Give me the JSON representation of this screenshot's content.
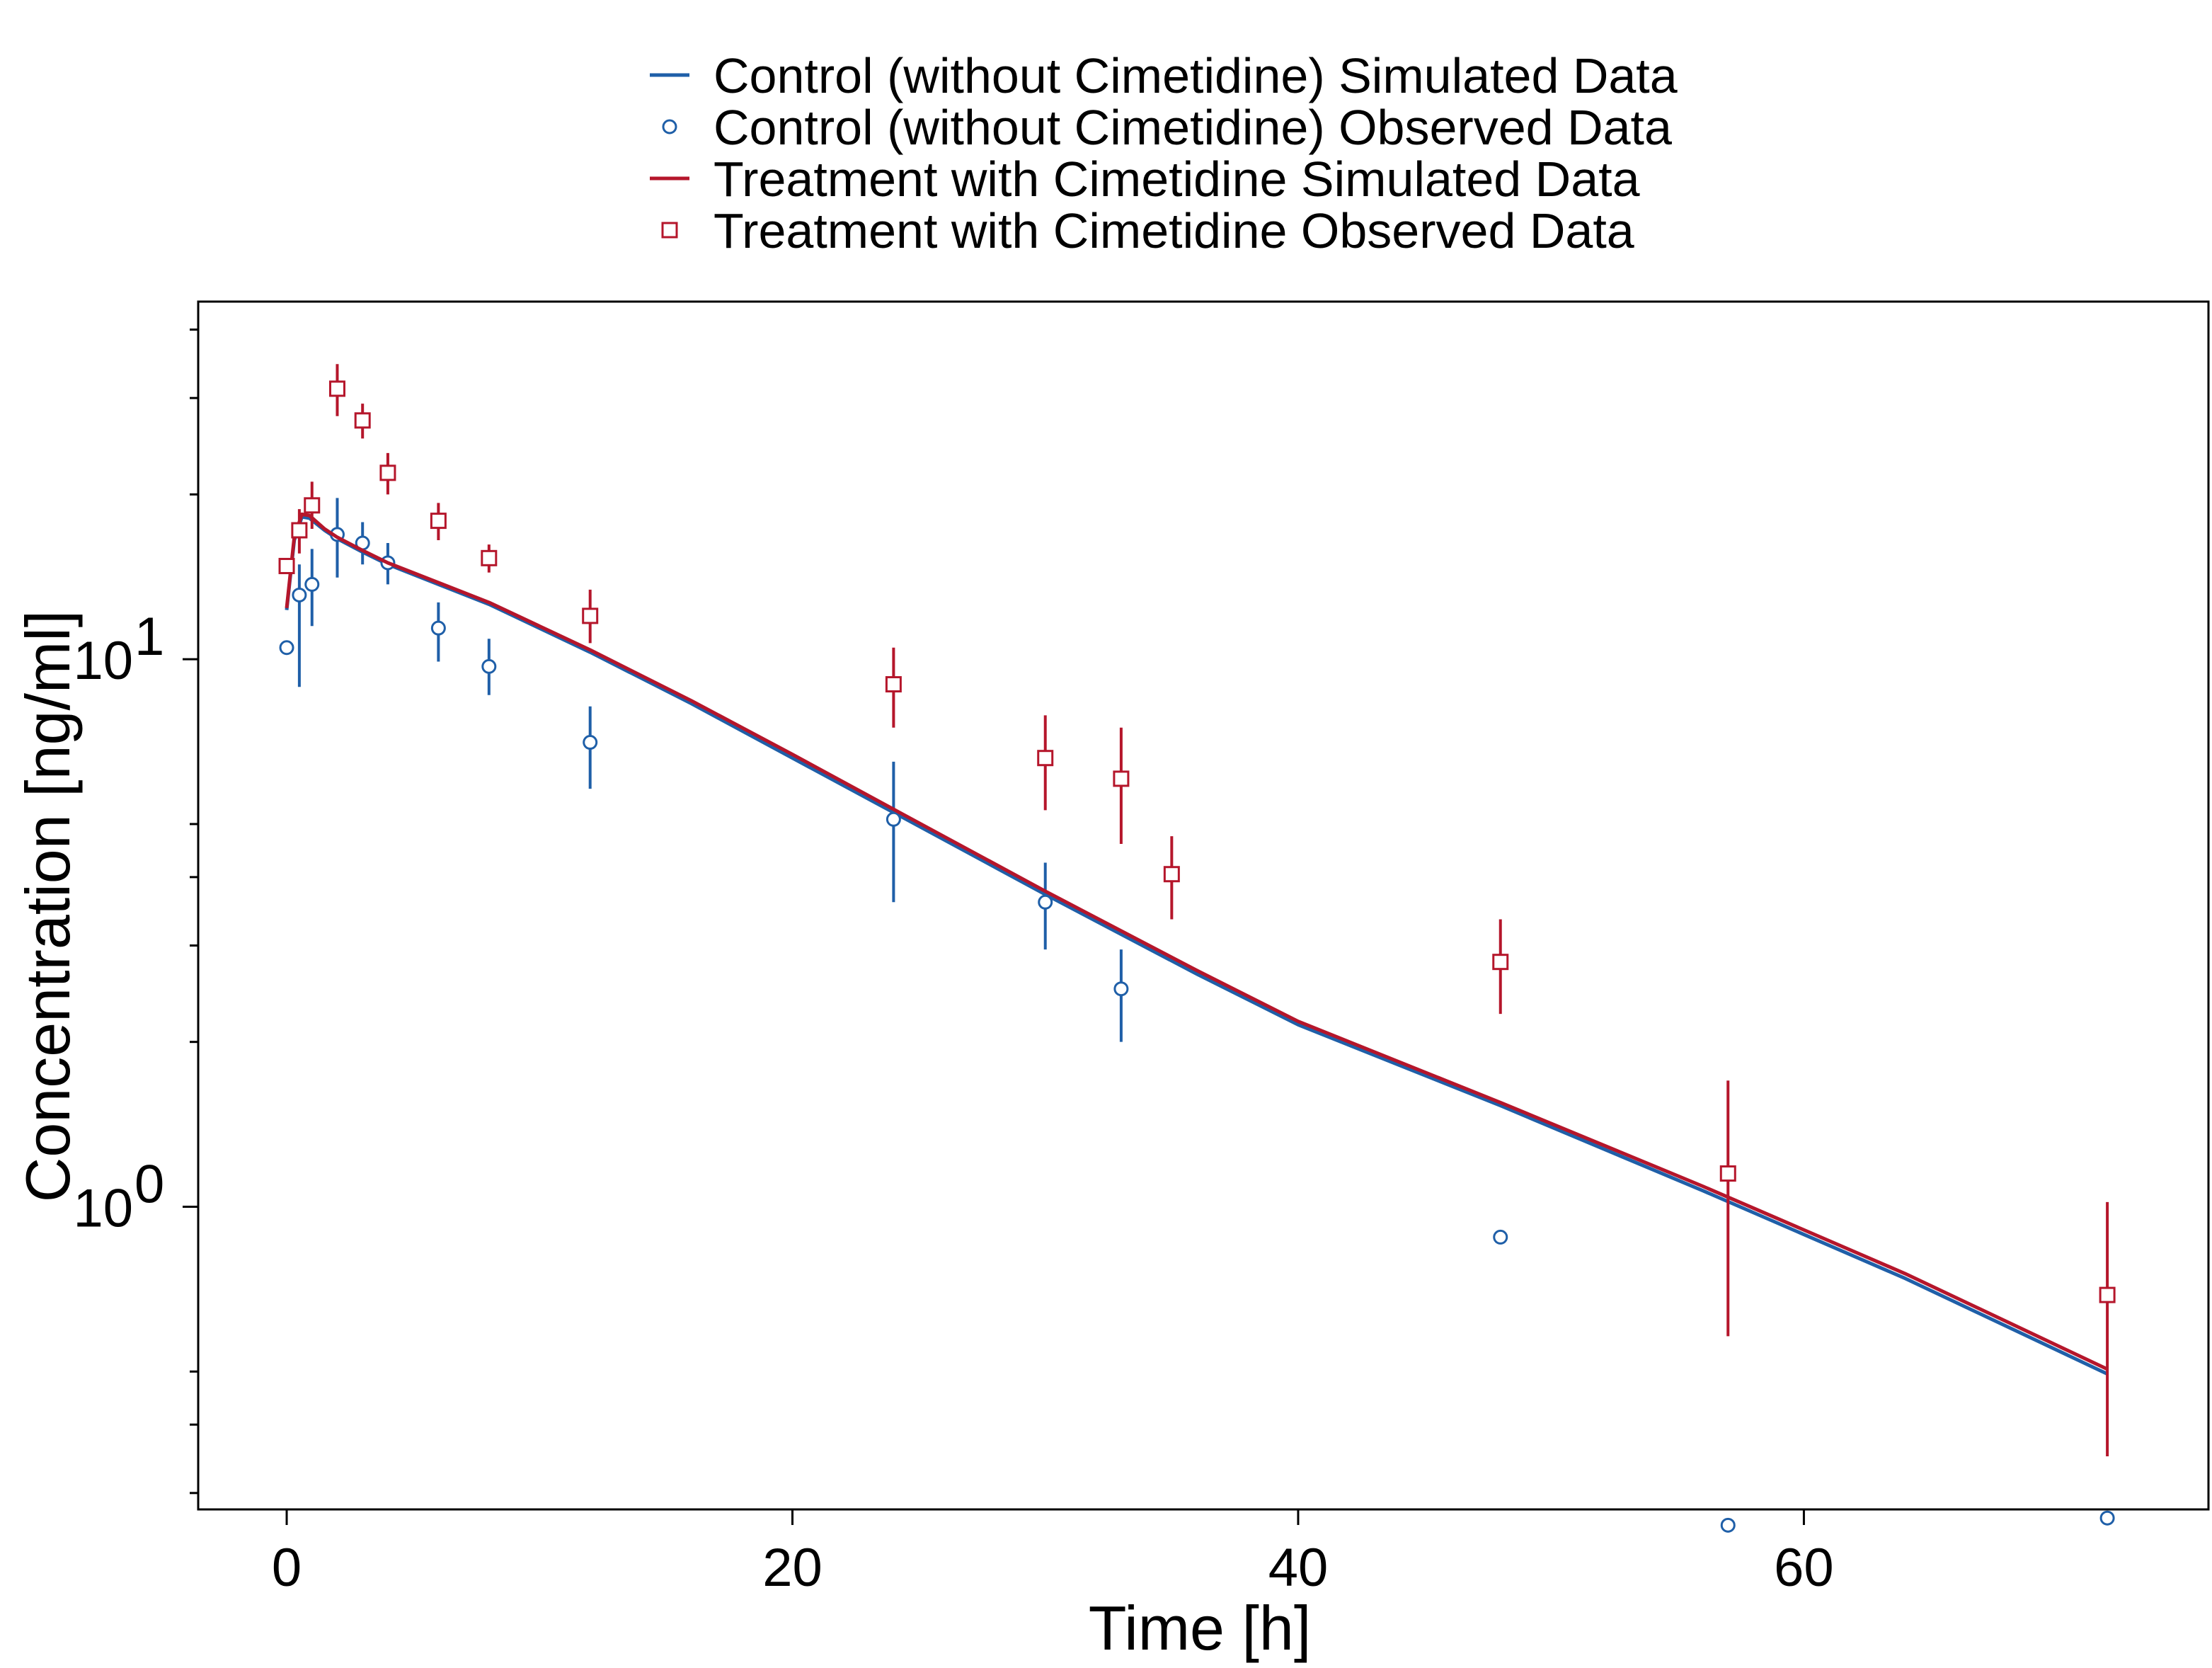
{
  "chart_data": {
    "type": "scatter",
    "title": "",
    "xlabel": "Time [h]",
    "ylabel": "Concentration [ng/ml]",
    "xlim": [
      -3.5,
      76
    ],
    "ylim": [
      0.28,
      45
    ],
    "y_scale": "log",
    "x_ticks": [
      0,
      20,
      40,
      60
    ],
    "x_tick_labels": [
      "0",
      "20",
      "40",
      "60"
    ],
    "y_major_ticks": [
      {
        "value": 1,
        "base": "10",
        "exp": "0"
      },
      {
        "value": 10,
        "base": "10",
        "exp": "1"
      }
    ],
    "y_minor_ticks": [
      0.3,
      0.4,
      0.5,
      2,
      3,
      4,
      5,
      20,
      30,
      40
    ],
    "grid": false,
    "legend_position": "top-center",
    "series": [
      {
        "name": "Control (without Cimetidine) Simulated Data",
        "kind": "line",
        "color": "#1f5fa8",
        "x": [
          0,
          0.3,
          0.6,
          0.9,
          1.5,
          2,
          3,
          4,
          6,
          8,
          12,
          16,
          20,
          24,
          30,
          36,
          40,
          48,
          56,
          64,
          72
        ],
        "y": [
          12.3,
          16.5,
          18.2,
          18.1,
          17.2,
          16.6,
          15.7,
          14.9,
          13.7,
          12.6,
          10.3,
          8.3,
          6.6,
          5.25,
          3.72,
          2.66,
          2.15,
          1.53,
          1.07,
          0.74,
          0.495
        ]
      },
      {
        "name": "Control (without Cimetidine) Observed Data",
        "kind": "markers",
        "marker": "circle",
        "color": "#1f5fa8",
        "x": [
          0,
          0.5,
          1,
          2,
          3,
          4,
          6,
          8,
          12,
          24,
          30,
          33,
          48,
          57,
          72
        ],
        "y": [
          10.5,
          13.1,
          13.7,
          16.9,
          16.3,
          15.0,
          11.4,
          9.7,
          7.05,
          5.1,
          3.6,
          2.5,
          0.88,
          0.262,
          0.27
        ],
        "err_low": [
          null,
          8.9,
          11.5,
          14.1,
          14.9,
          13.7,
          9.9,
          8.6,
          5.8,
          3.6,
          2.95,
          2.0,
          null,
          null,
          null
        ],
        "err_high": [
          null,
          14.9,
          15.9,
          19.7,
          17.8,
          16.3,
          12.7,
          10.9,
          8.2,
          6.5,
          4.25,
          2.95,
          null,
          null,
          null
        ]
      },
      {
        "name": "Treatment with Cimetidine Simulated Data",
        "kind": "line",
        "color": "#b5162b",
        "x": [
          0,
          0.3,
          0.6,
          0.9,
          1.5,
          2,
          3,
          4,
          6,
          8,
          12,
          16,
          20,
          24,
          30,
          36,
          40,
          48,
          56,
          64,
          72
        ],
        "y": [
          12.4,
          16.7,
          18.4,
          18.3,
          17.3,
          16.7,
          15.8,
          15.0,
          13.8,
          12.7,
          10.4,
          8.4,
          6.7,
          5.32,
          3.77,
          2.7,
          2.18,
          1.55,
          1.09,
          0.755,
          0.505
        ]
      },
      {
        "name": "Treatment with Cimetidine Observed Data",
        "kind": "markers",
        "marker": "square",
        "color": "#b5162b",
        "x": [
          0,
          0.5,
          1,
          2,
          3,
          4,
          6,
          8,
          12,
          24,
          30,
          33,
          35,
          48,
          57,
          72
        ],
        "y": [
          14.8,
          17.2,
          19.1,
          31.2,
          27.3,
          21.9,
          17.9,
          15.3,
          12.0,
          9.0,
          6.6,
          6.05,
          4.05,
          2.8,
          1.15,
          0.69
        ],
        "err_low": [
          null,
          15.6,
          17.3,
          27.8,
          25.3,
          20.0,
          16.5,
          14.4,
          10.7,
          7.5,
          5.3,
          4.6,
          3.35,
          2.25,
          0.58,
          0.35
        ],
        "err_high": [
          null,
          18.8,
          21.1,
          34.6,
          29.3,
          23.8,
          19.3,
          16.2,
          13.4,
          10.5,
          7.9,
          7.5,
          4.75,
          3.35,
          1.7,
          1.02
        ]
      }
    ]
  }
}
